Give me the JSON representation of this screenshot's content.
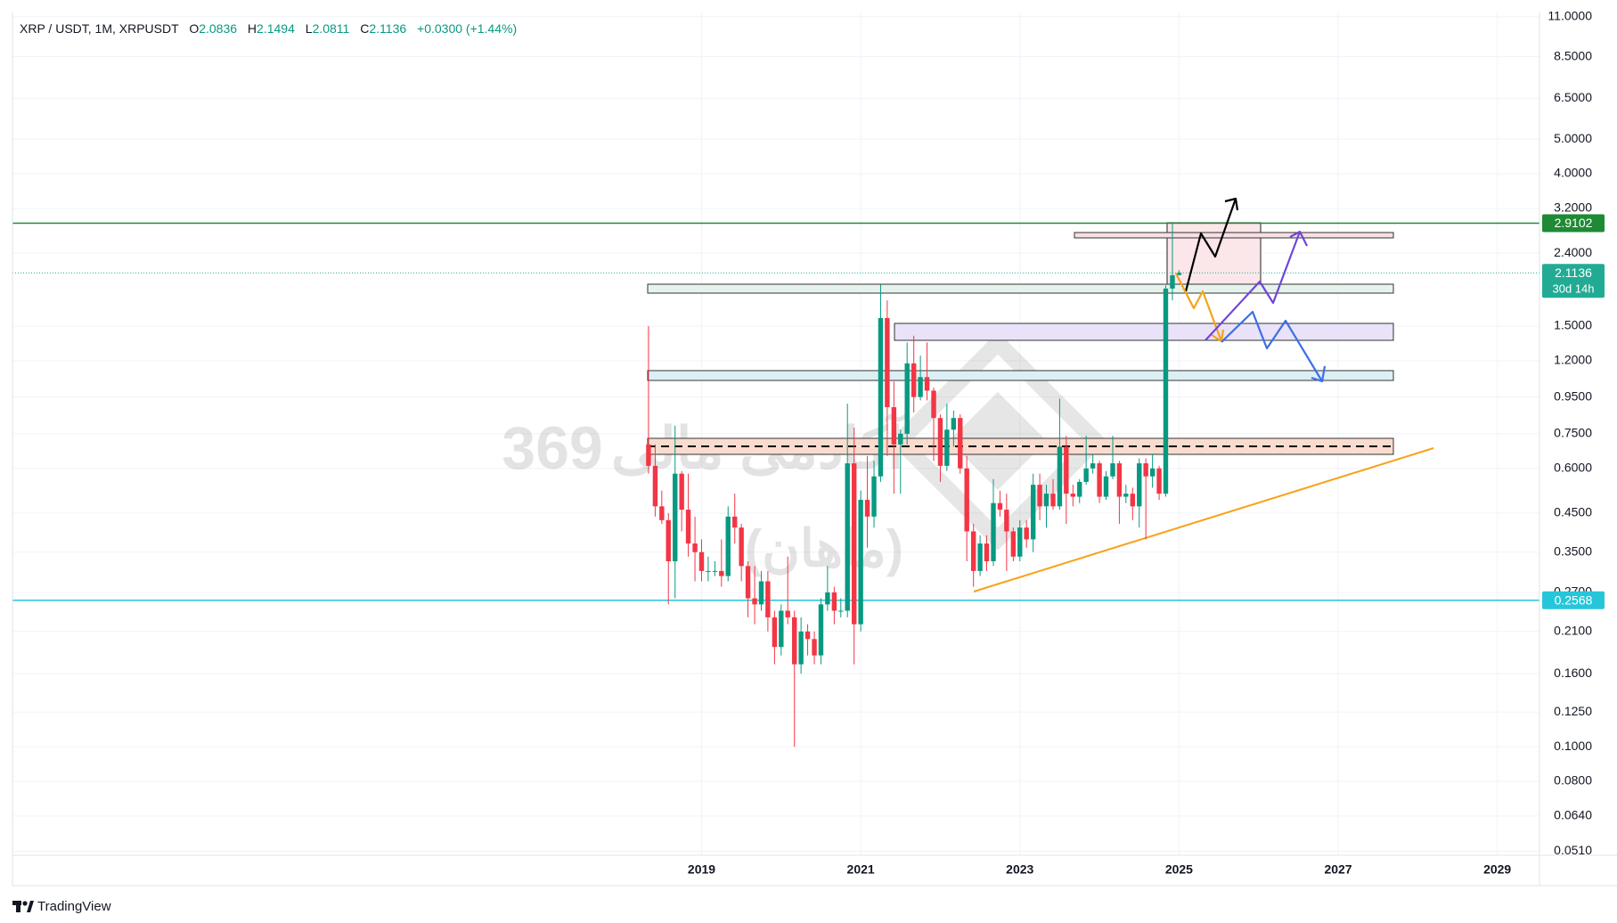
{
  "chart_data": {
    "type": "candlestick",
    "header": {
      "symbol": "XRP / USDT, 1M, XRPUSDT",
      "o_label": "O",
      "o": "2.0836",
      "h_label": "H",
      "h": "2.1494",
      "l_label": "L",
      "l": "2.0811",
      "c_label": "C",
      "c": "2.1136",
      "change": "+0.0300 (+1.44%)"
    },
    "watermark": [
      "369",
      "آکادمی مالی",
      "(ماهان)"
    ],
    "footer": "TradingView",
    "log_scale": true,
    "grid": true,
    "up_color": "#089981",
    "down_color": "#f23645",
    "xlim": [
      2010.34,
      2029.53
    ],
    "xticks": [
      2019,
      2021,
      2023,
      2025,
      2027,
      2029
    ],
    "ylim": [
      0.0497,
      11.3
    ],
    "yticks": [
      {
        "value": 11,
        "label": "11.0000"
      },
      {
        "value": 8.5,
        "label": "8.5000"
      },
      {
        "value": 6.5,
        "label": "6.5000"
      },
      {
        "value": 5,
        "label": "5.0000"
      },
      {
        "value": 4,
        "label": "4.0000"
      },
      {
        "value": 3.2,
        "label": "3.2000"
      },
      {
        "value": 2.4,
        "label": "2.4000"
      },
      {
        "value": 1.5,
        "label": "1.5000"
      },
      {
        "value": 1.2,
        "label": "1.2000"
      },
      {
        "value": 0.95,
        "label": "0.9500"
      },
      {
        "value": 0.75,
        "label": "0.7500"
      },
      {
        "value": 0.6,
        "label": "0.6000"
      },
      {
        "value": 0.45,
        "label": "0.4500"
      },
      {
        "value": 0.35,
        "label": "0.3500"
      },
      {
        "value": 0.27,
        "label": "0.2700"
      },
      {
        "value": 0.21,
        "label": "0.2100"
      },
      {
        "value": 0.16,
        "label": "0.1600"
      },
      {
        "value": 0.125,
        "label": "0.1250"
      },
      {
        "value": 0.1,
        "label": "0.1000"
      },
      {
        "value": 0.08,
        "label": "0.0800"
      },
      {
        "value": 0.064,
        "label": "0.0640"
      },
      {
        "value": 0.051,
        "label": "0.0510"
      }
    ],
    "price_lines": [
      {
        "value": 2.9102,
        "color": "#1e8a34",
        "style": "solid"
      },
      {
        "value": 2.1136,
        "color": "#22ab94",
        "style": "dotted",
        "countdown": "30d 14h"
      },
      {
        "value": 0.2568,
        "color": "#26c6da",
        "style": "solid"
      }
    ],
    "x": [
      2018.333,
      2018.417,
      2018.5,
      2018.583,
      2018.667,
      2018.75,
      2018.833,
      2018.917,
      2019,
      2019.083,
      2019.167,
      2019.25,
      2019.333,
      2019.417,
      2019.5,
      2019.583,
      2019.667,
      2019.75,
      2019.833,
      2019.917,
      2020,
      2020.083,
      2020.167,
      2020.25,
      2020.333,
      2020.417,
      2020.5,
      2020.583,
      2020.667,
      2020.75,
      2020.833,
      2020.917,
      2021,
      2021.083,
      2021.167,
      2021.25,
      2021.333,
      2021.417,
      2021.5,
      2021.583,
      2021.667,
      2021.75,
      2021.833,
      2021.917,
      2022,
      2022.083,
      2022.167,
      2022.25,
      2022.333,
      2022.417,
      2022.5,
      2022.583,
      2022.667,
      2022.75,
      2022.833,
      2022.917,
      2023,
      2023.083,
      2023.167,
      2023.25,
      2023.333,
      2023.417,
      2023.5,
      2023.583,
      2023.667,
      2023.75,
      2023.833,
      2023.917,
      2024,
      2024.083,
      2024.167,
      2024.25,
      2024.333,
      2024.417,
      2024.5,
      2024.583,
      2024.667,
      2024.75,
      2024.833,
      2024.917,
      2025
    ],
    "open": [
      0.7,
      0.61,
      0.47,
      0.43,
      0.33,
      0.58,
      0.46,
      0.37,
      0.35,
      0.31,
      0.31,
      0.31,
      0.3,
      0.44,
      0.41,
      0.32,
      0.26,
      0.25,
      0.29,
      0.23,
      0.19,
      0.24,
      0.23,
      0.17,
      0.21,
      0.2,
      0.18,
      0.25,
      0.27,
      0.24,
      0.24,
      0.62,
      0.22,
      0.49,
      0.44,
      0.57,
      1.58,
      0.89,
      0.7,
      0.75,
      1.18,
      0.95,
      1.08,
      0.99,
      0.83,
      0.61,
      0.77,
      0.83,
      0.6,
      0.4,
      0.31,
      0.37,
      0.33,
      0.48,
      0.46,
      0.4,
      0.34,
      0.41,
      0.38,
      0.54,
      0.47,
      0.51,
      0.47,
      0.69,
      0.51,
      0.5,
      0.55,
      0.6,
      0.62,
      0.5,
      0.57,
      0.62,
      0.5,
      0.51,
      0.47,
      0.62,
      0.57,
      0.6,
      0.51,
      1.91,
      2.0836
    ],
    "high": [
      1.5,
      0.7,
      0.52,
      0.45,
      0.79,
      0.59,
      0.58,
      0.44,
      0.38,
      0.34,
      0.33,
      0.38,
      0.47,
      0.51,
      0.42,
      0.33,
      0.32,
      0.31,
      0.31,
      0.24,
      0.25,
      0.34,
      0.24,
      0.23,
      0.22,
      0.21,
      0.26,
      0.32,
      0.28,
      0.26,
      0.91,
      0.78,
      0.52,
      0.65,
      0.63,
      1.96,
      1.77,
      1.05,
      0.77,
      1.35,
      1.41,
      1.24,
      1.35,
      1.01,
      0.85,
      0.91,
      0.87,
      0.85,
      0.65,
      0.42,
      0.39,
      0.39,
      0.56,
      0.52,
      0.51,
      0.41,
      0.43,
      0.43,
      0.58,
      0.58,
      0.54,
      0.56,
      0.94,
      0.74,
      0.54,
      0.56,
      0.74,
      0.66,
      0.63,
      0.59,
      0.74,
      0.63,
      0.54,
      0.53,
      0.64,
      0.64,
      0.66,
      0.61,
      1.95,
      2.91,
      2.1494
    ],
    "low": [
      0.58,
      0.44,
      0.42,
      0.25,
      0.26,
      0.4,
      0.34,
      0.29,
      0.29,
      0.29,
      0.3,
      0.28,
      0.29,
      0.37,
      0.29,
      0.23,
      0.22,
      0.24,
      0.21,
      0.17,
      0.18,
      0.22,
      0.1,
      0.16,
      0.18,
      0.17,
      0.17,
      0.24,
      0.22,
      0.23,
      0.23,
      0.17,
      0.21,
      0.36,
      0.41,
      0.55,
      0.65,
      0.51,
      0.51,
      0.7,
      0.86,
      0.93,
      0.93,
      0.63,
      0.55,
      0.59,
      0.69,
      0.58,
      0.33,
      0.28,
      0.3,
      0.31,
      0.32,
      0.44,
      0.31,
      0.33,
      0.33,
      0.36,
      0.35,
      0.43,
      0.41,
      0.46,
      0.46,
      0.42,
      0.47,
      0.48,
      0.54,
      0.58,
      0.48,
      0.49,
      0.56,
      0.42,
      0.48,
      0.43,
      0.41,
      0.38,
      0.53,
      0.49,
      0.5,
      1.77,
      2.0811
    ],
    "close": [
      0.61,
      0.47,
      0.43,
      0.33,
      0.58,
      0.46,
      0.37,
      0.35,
      0.31,
      0.31,
      0.31,
      0.3,
      0.44,
      0.41,
      0.32,
      0.26,
      0.25,
      0.29,
      0.23,
      0.19,
      0.24,
      0.23,
      0.17,
      0.21,
      0.2,
      0.18,
      0.25,
      0.27,
      0.24,
      0.24,
      0.62,
      0.22,
      0.49,
      0.44,
      0.57,
      1.58,
      0.89,
      0.7,
      0.75,
      1.18,
      0.95,
      1.08,
      0.99,
      0.83,
      0.61,
      0.77,
      0.83,
      0.6,
      0.4,
      0.31,
      0.37,
      0.33,
      0.48,
      0.46,
      0.4,
      0.34,
      0.41,
      0.38,
      0.54,
      0.47,
      0.51,
      0.47,
      0.69,
      0.51,
      0.5,
      0.55,
      0.6,
      0.62,
      0.5,
      0.57,
      0.62,
      0.5,
      0.51,
      0.47,
      0.62,
      0.57,
      0.6,
      0.51,
      1.91,
      2.08,
      2.1136
    ]
  }
}
